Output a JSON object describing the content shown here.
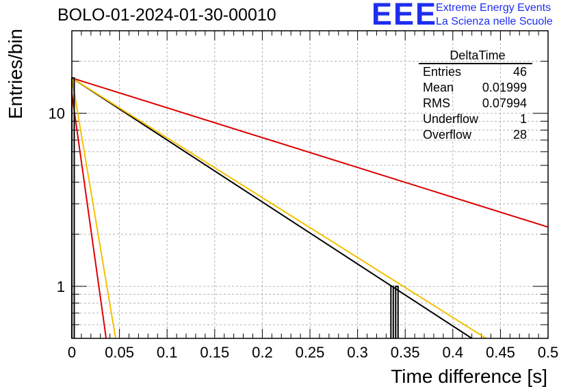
{
  "chart_data": {
    "type": "histogram",
    "title": "BOLO-01-2024-01-30-00010",
    "xlabel": "Time difference [s]",
    "ylabel": "Entries/bin",
    "xlim": [
      0,
      0.5
    ],
    "ylim": [
      0.5,
      30
    ],
    "yscale": "log",
    "grid": true,
    "x_ticks": [
      "0",
      "0.05",
      "0.1",
      "0.15",
      "0.2",
      "0.25",
      "0.3",
      "0.35",
      "0.4",
      "0.45",
      "0.5"
    ],
    "y_ticks": [
      "1",
      "10"
    ],
    "histogram": {
      "bins": [
        {
          "x0": 0.0,
          "x1": 0.0025,
          "y": 16
        },
        {
          "x0": 0.335,
          "x1": 0.3375,
          "y": 1
        },
        {
          "x0": 0.34,
          "x1": 0.3425,
          "y": 1
        }
      ]
    },
    "series": [
      {
        "color": "#dd0000",
        "x": [
          0,
          0.5
        ],
        "y": [
          16,
          2.2
        ]
      },
      {
        "color": "#000000",
        "x": [
          0,
          0.42
        ],
        "y": [
          16,
          0.5
        ]
      },
      {
        "color": "#f5c000",
        "x": [
          0,
          0.435
        ],
        "y": [
          16,
          0.5
        ]
      },
      {
        "color": "#dd0000",
        "x": [
          0,
          0.036
        ],
        "y": [
          13,
          0.5
        ]
      },
      {
        "color": "#f5c000",
        "x": [
          0,
          0.046
        ],
        "y": [
          16,
          0.5
        ]
      }
    ],
    "stats_box": {
      "title": "DeltaTime",
      "rows": [
        {
          "label": "Entries",
          "value": "46"
        },
        {
          "label": "Mean",
          "value": "0.01999"
        },
        {
          "label": "RMS",
          "value": "0.07994"
        },
        {
          "label": "Underflow",
          "value": "1"
        },
        {
          "label": "Overflow",
          "value": "28"
        }
      ]
    }
  },
  "logo": {
    "mark": "EEE",
    "line1": "Extreme Energy Events",
    "line2": "La Scienza nelle Scuole",
    "color": "#1f2df0"
  }
}
